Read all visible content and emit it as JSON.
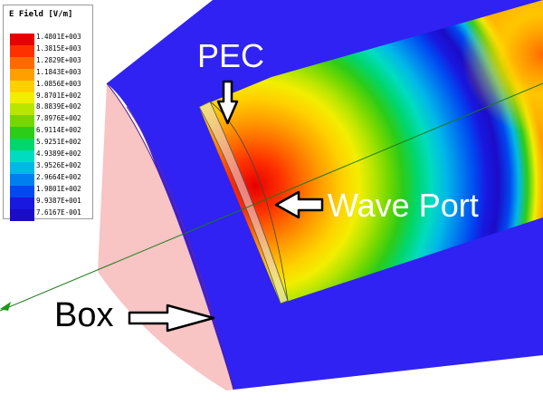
{
  "legend": {
    "title": "E Field [V/m]",
    "entries": [
      {
        "value": "1.4801E+003",
        "color": "#e60000"
      },
      {
        "value": "1.3815E+003",
        "color": "#ff3000"
      },
      {
        "value": "1.2829E+003",
        "color": "#ff6a00"
      },
      {
        "value": "1.1843E+003",
        "color": "#ffa000"
      },
      {
        "value": "1.0856E+003",
        "color": "#ffd000"
      },
      {
        "value": "9.8701E+002",
        "color": "#f2ee00"
      },
      {
        "value": "8.8839E+002",
        "color": "#b8e600"
      },
      {
        "value": "7.8976E+002",
        "color": "#74d800"
      },
      {
        "value": "6.9114E+002",
        "color": "#2ccc18"
      },
      {
        "value": "5.9251E+002",
        "color": "#00d66e"
      },
      {
        "value": "4.9389E+002",
        "color": "#00dcc0"
      },
      {
        "value": "3.9526E+002",
        "color": "#00b8e8"
      },
      {
        "value": "2.9664E+002",
        "color": "#0080f0"
      },
      {
        "value": "1.9801E+002",
        "color": "#0048f0"
      },
      {
        "value": "9.9387E+001",
        "color": "#1818e0"
      },
      {
        "value": "7.6167E-001",
        "color": "#1c0cc8"
      }
    ]
  },
  "annotations": {
    "pec": "PEC",
    "wave_port": "Wave Port",
    "box": "Box"
  }
}
